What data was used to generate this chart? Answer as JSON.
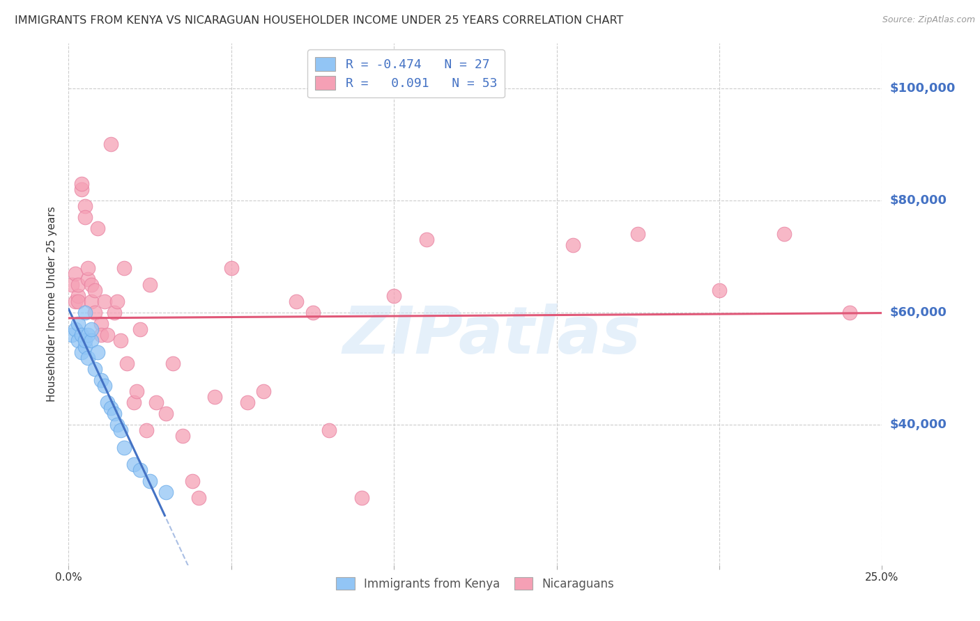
{
  "title": "IMMIGRANTS FROM KENYA VS NICARAGUAN HOUSEHOLDER INCOME UNDER 25 YEARS CORRELATION CHART",
  "source": "Source: ZipAtlas.com",
  "ylabel": "Householder Income Under 25 years",
  "ytick_labels": [
    "$100,000",
    "$80,000",
    "$60,000",
    "$40,000"
  ],
  "ytick_values": [
    100000,
    80000,
    60000,
    40000
  ],
  "ymin": 15000,
  "ymax": 108000,
  "xmin": 0.0,
  "xmax": 0.25,
  "legend_kenya_R": "-0.474",
  "legend_kenya_N": "27",
  "legend_nic_R": "0.091",
  "legend_nic_N": "53",
  "kenya_color": "#92c5f5",
  "kenya_edge_color": "#6aaae8",
  "nic_color": "#f5a0b5",
  "nic_edge_color": "#e880a0",
  "kenya_line_color": "#4472c4",
  "nic_line_color": "#e05878",
  "kenya_scatter_x": [
    0.001,
    0.002,
    0.003,
    0.003,
    0.004,
    0.004,
    0.005,
    0.005,
    0.005,
    0.006,
    0.006,
    0.007,
    0.007,
    0.008,
    0.009,
    0.01,
    0.011,
    0.012,
    0.013,
    0.014,
    0.015,
    0.016,
    0.017,
    0.02,
    0.022,
    0.025,
    0.03
  ],
  "kenya_scatter_y": [
    56000,
    57000,
    55000,
    58000,
    53000,
    56000,
    54000,
    55000,
    60000,
    52000,
    56000,
    55000,
    57000,
    50000,
    53000,
    48000,
    47000,
    44000,
    43000,
    42000,
    40000,
    39000,
    36000,
    33000,
    32000,
    30000,
    28000
  ],
  "nic_scatter_x": [
    0.001,
    0.002,
    0.002,
    0.003,
    0.003,
    0.003,
    0.004,
    0.004,
    0.005,
    0.005,
    0.006,
    0.006,
    0.007,
    0.007,
    0.008,
    0.008,
    0.009,
    0.01,
    0.01,
    0.011,
    0.012,
    0.013,
    0.014,
    0.015,
    0.016,
    0.017,
    0.018,
    0.02,
    0.021,
    0.022,
    0.024,
    0.025,
    0.027,
    0.03,
    0.032,
    0.035,
    0.038,
    0.04,
    0.045,
    0.05,
    0.055,
    0.06,
    0.07,
    0.075,
    0.08,
    0.09,
    0.1,
    0.11,
    0.155,
    0.175,
    0.2,
    0.22,
    0.24
  ],
  "nic_scatter_y": [
    65000,
    67000,
    62000,
    63000,
    65000,
    62000,
    82000,
    83000,
    79000,
    77000,
    66000,
    68000,
    65000,
    62000,
    64000,
    60000,
    75000,
    58000,
    56000,
    62000,
    56000,
    90000,
    60000,
    62000,
    55000,
    68000,
    51000,
    44000,
    46000,
    57000,
    39000,
    65000,
    44000,
    42000,
    51000,
    38000,
    30000,
    27000,
    45000,
    68000,
    44000,
    46000,
    62000,
    60000,
    39000,
    27000,
    63000,
    73000,
    72000,
    74000,
    64000,
    74000,
    60000
  ],
  "watermark": "ZIPatlas",
  "background_color": "#ffffff",
  "grid_color": "#cccccc",
  "ytick_color": "#4472c4",
  "title_color": "#333333",
  "title_fontsize": 11.5
}
